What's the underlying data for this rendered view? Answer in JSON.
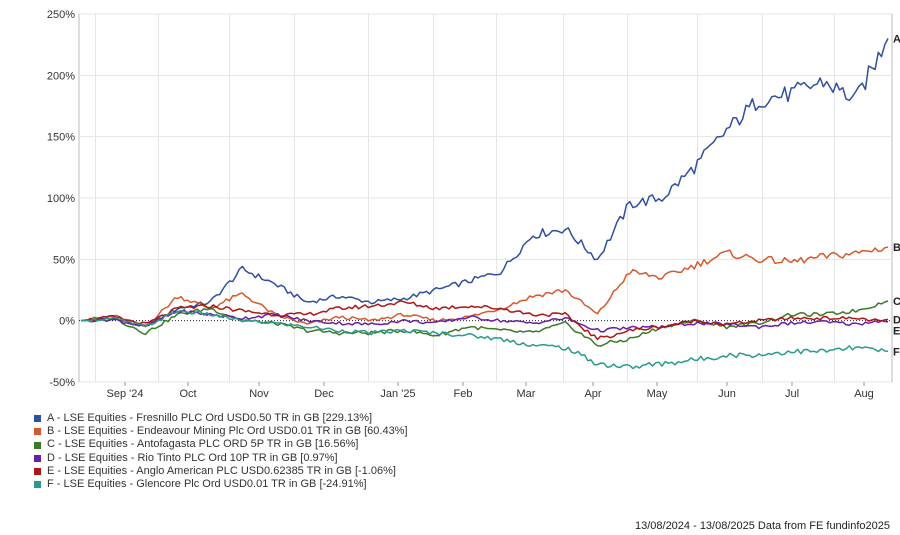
{
  "chart_data": {
    "type": "line",
    "title": "",
    "xlabel": "",
    "ylabel": "",
    "ylim": [
      -50,
      250
    ],
    "y_ticks": [
      "250%",
      "200%",
      "150%",
      "100%",
      "50%",
      "0%",
      "-50%"
    ],
    "y_tick_values": [
      250,
      200,
      150,
      100,
      50,
      0,
      -50
    ],
    "x_ticks": [
      "Sep '24",
      "Oct",
      "Nov",
      "Dec",
      "Jan '25",
      "Feb",
      "Mar",
      "Apr",
      "May",
      "Jun",
      "Jul",
      "Aug"
    ],
    "grid": true,
    "legend_position": "bottom-left",
    "series": [
      {
        "id": "A",
        "name": "A - LSE Equities - Fresnillo PLC Ord USD0.50 TR in GB [229.13%]",
        "color": "#2f4fa0",
        "end_label": "A",
        "values": [
          0,
          2,
          -5,
          10,
          15,
          42,
          30,
          15,
          20,
          15,
          18,
          25,
          32,
          40,
          70,
          75,
          50,
          95,
          100,
          125,
          155,
          180,
          185,
          195,
          180,
          230
        ]
      },
      {
        "id": "B",
        "name": "B - LSE Equities - Endeavour Mining Plc Ord USD0.01 TR in GB [60.43%]",
        "color": "#d55a2b",
        "end_label": "B",
        "values": [
          0,
          4,
          -5,
          20,
          10,
          22,
          5,
          -3,
          3,
          0,
          5,
          0,
          3,
          10,
          20,
          25,
          5,
          40,
          35,
          45,
          55,
          50,
          48,
          52,
          55,
          60
        ]
      },
      {
        "id": "C",
        "name": "C - LSE Equities - Antofagasta PLC ORD 5P TR in GB [16.56%]",
        "color": "#3c7a25",
        "end_label": "C",
        "values": [
          0,
          2,
          -10,
          5,
          10,
          0,
          -2,
          -8,
          -10,
          -10,
          -8,
          -12,
          -5,
          -8,
          -10,
          -2,
          -20,
          -15,
          -5,
          0,
          -5,
          -2,
          5,
          5,
          8,
          16
        ]
      },
      {
        "id": "D",
        "name": "D - LSE Equities - Rio Tinto PLC Ord 10P TR in GB [0.97%]",
        "color": "#6a1fa6",
        "end_label": "D",
        "values": [
          0,
          1,
          -5,
          8,
          5,
          2,
          5,
          0,
          -2,
          -3,
          0,
          -2,
          3,
          0,
          -2,
          2,
          -8,
          -6,
          -5,
          -2,
          -3,
          -5,
          -2,
          -1,
          -3,
          1
        ]
      },
      {
        "id": "E",
        "name": "E - LSE Equities - Anglo American PLC USD0.62385 TR in GB [-1.06%]",
        "color": "#b01515",
        "end_label": "E",
        "values": [
          0,
          3,
          -3,
          10,
          12,
          8,
          5,
          5,
          10,
          12,
          15,
          10,
          12,
          10,
          5,
          5,
          -15,
          -8,
          -5,
          0,
          -3,
          0,
          2,
          2,
          2,
          -1
        ]
      },
      {
        "id": "F",
        "name": "F - LSE Equities - Glencore Plc Ord USD0.01 TR in GB [-24.91%]",
        "color": "#2a9a8f",
        "end_label": "F",
        "values": [
          0,
          2,
          -5,
          8,
          5,
          0,
          -2,
          -5,
          -8,
          -10,
          -8,
          -10,
          -12,
          -15,
          -20,
          -22,
          -35,
          -38,
          -35,
          -32,
          -28,
          -28,
          -25,
          -25,
          -22,
          -25
        ]
      }
    ]
  },
  "footer": "13/08/2024 - 13/08/2025 Data from FE fundinfo2025"
}
